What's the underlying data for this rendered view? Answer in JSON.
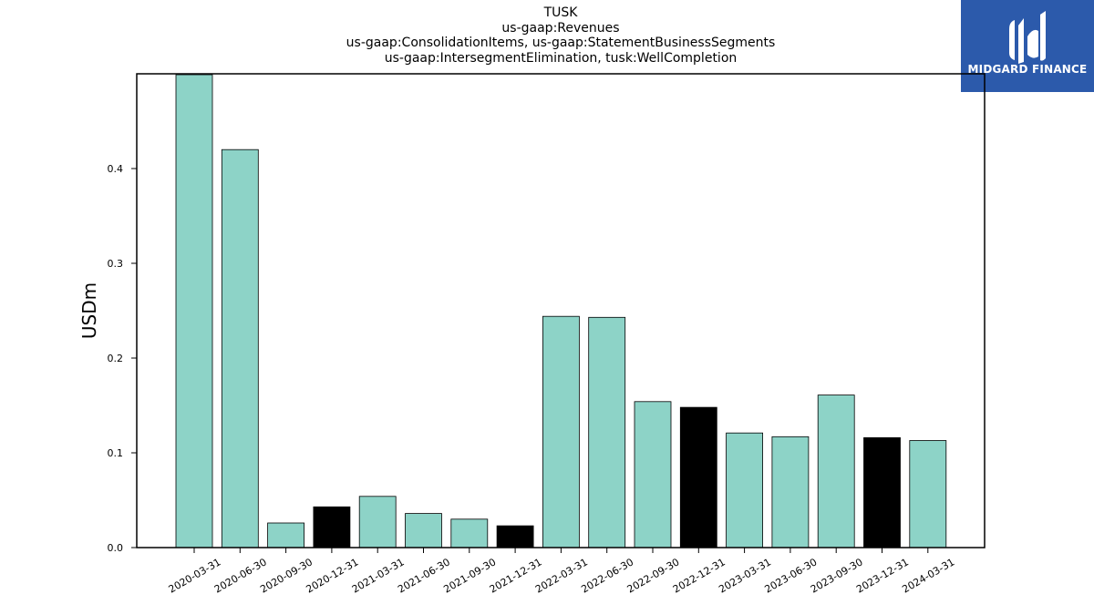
{
  "chart_data": {
    "type": "bar",
    "title_lines": [
      "TUSK",
      "us-gaap:Revenues",
      "us-gaap:ConsolidationItems, us-gaap:StatementBusinessSegments",
      "us-gaap:IntersegmentElimination, tusk:WellCompletion"
    ],
    "xlabel": "",
    "ylabel": "USDm",
    "ylim": [
      0,
      0.5
    ],
    "yticks": [
      0.0,
      0.1,
      0.2,
      0.3,
      0.4
    ],
    "ytick_labels": [
      "0.0",
      "0.1",
      "0.2",
      "0.3",
      "0.4"
    ],
    "grid": false,
    "categories": [
      "2020-03-31",
      "2020-06-30",
      "2020-09-30",
      "2020-12-31",
      "2021-03-31",
      "2021-06-30",
      "2021-09-30",
      "2021-12-31",
      "2022-03-31",
      "2022-06-30",
      "2022-09-30",
      "2022-12-31",
      "2023-03-31",
      "2023-06-30",
      "2023-09-30",
      "2023-12-31",
      "2024-03-31"
    ],
    "values": [
      0.499,
      0.42,
      0.026,
      0.043,
      0.054,
      0.036,
      0.03,
      0.023,
      0.244,
      0.243,
      0.154,
      0.148,
      0.121,
      0.117,
      0.161,
      0.116,
      0.113
    ],
    "bar_colors": [
      "#8dd3c7",
      "#8dd3c7",
      "#8dd3c7",
      "#000000",
      "#8dd3c7",
      "#8dd3c7",
      "#8dd3c7",
      "#000000",
      "#8dd3c7",
      "#8dd3c7",
      "#8dd3c7",
      "#000000",
      "#8dd3c7",
      "#8dd3c7",
      "#8dd3c7",
      "#000000",
      "#8dd3c7"
    ]
  },
  "logo": {
    "text": "MIDGARD FINANCE",
    "background": "#2c5aab"
  }
}
